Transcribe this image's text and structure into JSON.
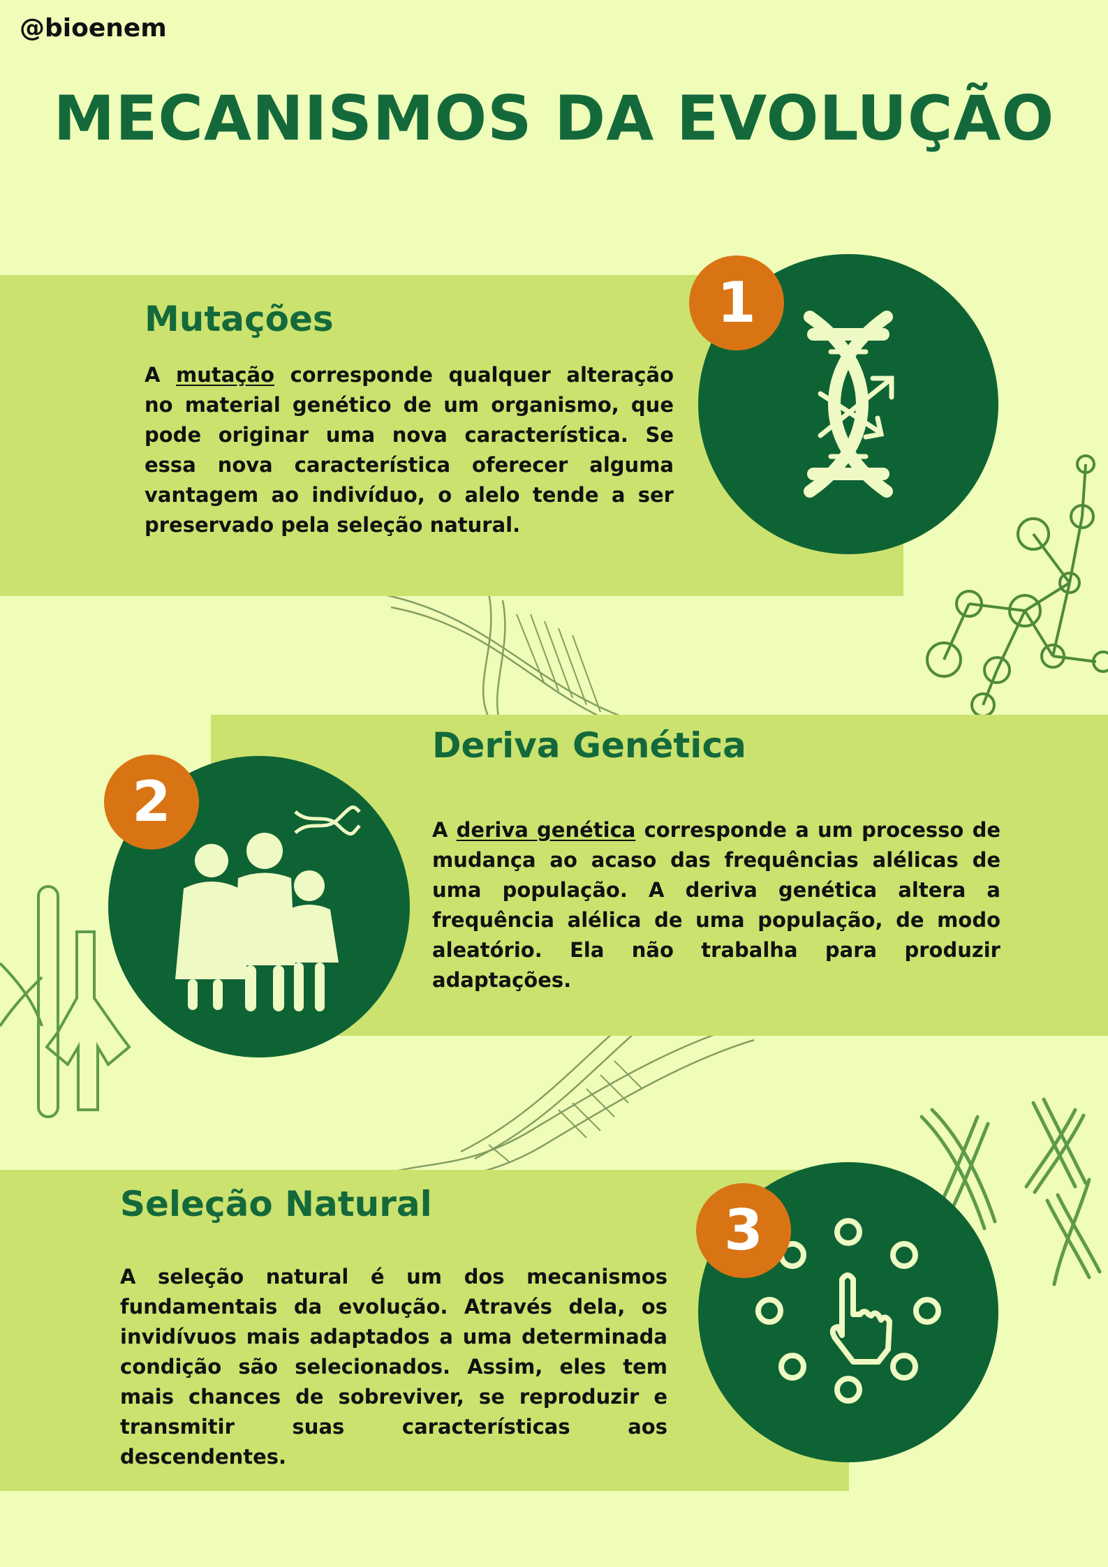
{
  "header": {
    "handle": "@bioenem",
    "title": "MECANISMOS DA EVOLUÇÃO"
  },
  "sections": [
    {
      "number": "1",
      "heading": "Mutações",
      "text_before": "A ",
      "underlined": "mutação",
      "text_after": " corresponde qualquer alteração no material genético de um organismo, que pode originar uma nova característica. Se essa nova característica oferecer alguma vantagem ao indivíduo, o alelo tende a ser preservado pela seleção natural.",
      "icon": "dna-mutation-icon"
    },
    {
      "number": "2",
      "heading": "Deriva Genética",
      "text_before": "A ",
      "underlined": "deriva genética",
      "text_after": " corresponde a um processo de mudança ao acaso das frequências alélicas de uma população. A deriva genética altera a frequência alélica de uma população, de modo aleatório. Ela não trabalha para produzir adaptações.",
      "icon": "family-dna-icon"
    },
    {
      "number": "3",
      "heading": "Seleção Natural",
      "text_before": "A seleção natural é um dos mecanismos fundamentais da evolução. Através dela, os invidívuos mais adaptados a uma determinada condição são selecionados. Assim, eles tem mais chances de sobreviver, se reproduzir e transmitir suas características aos descendentes.",
      "underlined": "",
      "text_after": "",
      "icon": "hand-selecting-icon"
    }
  ],
  "colors": {
    "background": "#effdb9",
    "panel": "#cbe26f",
    "dark_green": "#14693b",
    "circle": "#0e6334",
    "number_badge": "#d97414",
    "icon": "#eff9c3",
    "deco": "#5f9a4a"
  }
}
